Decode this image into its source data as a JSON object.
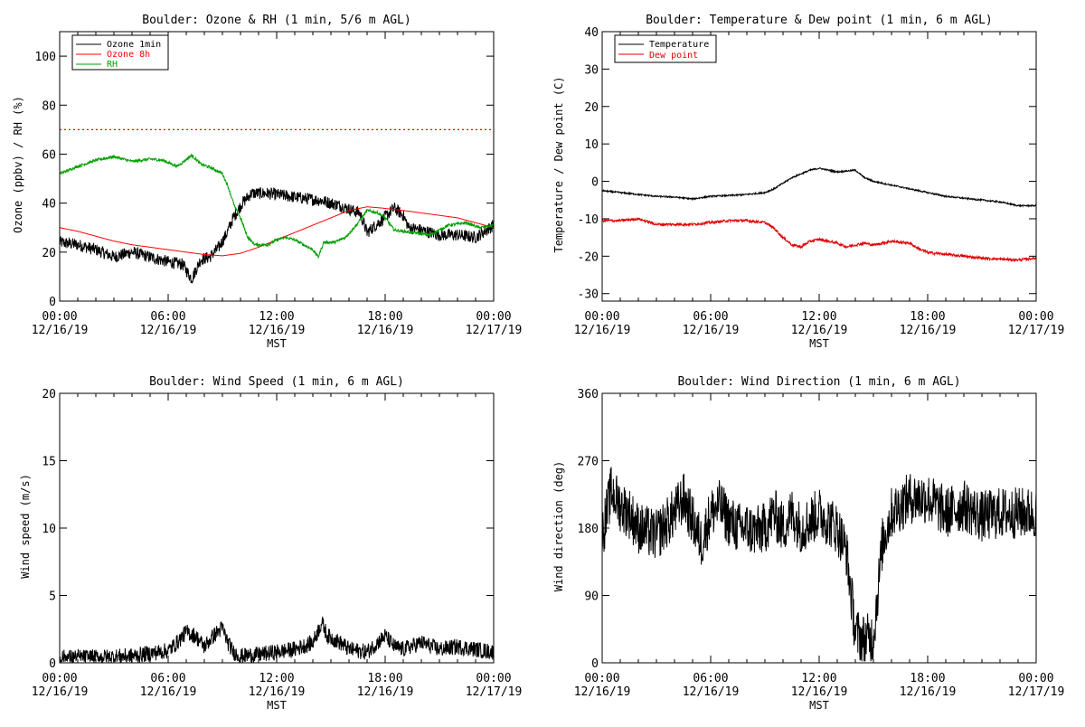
{
  "chart_data": [
    {
      "id": "ozone_rh",
      "type": "line",
      "title": "Boulder: Ozone & RH (1 min, 5/6 m AGL)",
      "xlabel": "MST",
      "ylabel": "Ozone (ppbv) / RH (%)",
      "x_range_hours": [
        0,
        24
      ],
      "x_ticks": [
        {
          "h": 0,
          "time": "00:00",
          "date": "12/16/19"
        },
        {
          "h": 6,
          "time": "06:00",
          "date": "12/16/19"
        },
        {
          "h": 12,
          "time": "12:00",
          "date": "12/16/19"
        },
        {
          "h": 18,
          "time": "18:00",
          "date": "12/16/19"
        },
        {
          "h": 24,
          "time": "00:00",
          "date": "12/17/19"
        }
      ],
      "ylim": [
        0,
        110
      ],
      "y_ticks": [
        0,
        20,
        40,
        60,
        80,
        100
      ],
      "legend": "top-left",
      "reference_line": {
        "y": 70,
        "color": "#ff0000",
        "style": "dotted"
      },
      "series": [
        {
          "name": "Ozone 1min",
          "color": "#000000",
          "noise": 2.5,
          "points": [
            [
              0,
              24
            ],
            [
              1,
              23
            ],
            [
              2,
              21
            ],
            [
              3,
              18
            ],
            [
              4,
              20
            ],
            [
              5,
              18
            ],
            [
              6,
              16
            ],
            [
              6.8,
              15
            ],
            [
              7.3,
              9
            ],
            [
              7.8,
              17
            ],
            [
              8.3,
              18
            ],
            [
              8.8,
              22
            ],
            [
              9.2,
              27
            ],
            [
              9.6,
              34
            ],
            [
              10.1,
              40
            ],
            [
              10.6,
              44
            ],
            [
              11.5,
              44
            ],
            [
              12.5,
              43
            ],
            [
              13.5,
              42
            ],
            [
              14.5,
              41
            ],
            [
              15.5,
              39
            ],
            [
              16.2,
              37
            ],
            [
              16.6,
              36
            ],
            [
              17,
              28
            ],
            [
              17.8,
              33
            ],
            [
              18.5,
              38
            ],
            [
              19,
              35
            ],
            [
              19.3,
              30
            ],
            [
              20,
              29
            ],
            [
              21,
              27
            ],
            [
              22,
              27
            ],
            [
              23,
              26
            ],
            [
              24,
              31
            ]
          ]
        },
        {
          "name": "Ozone 8h",
          "color": "#ff0000",
          "noise": 0,
          "points": [
            [
              0,
              30
            ],
            [
              1,
              28.5
            ],
            [
              2,
              26.5
            ],
            [
              3,
              24.5
            ],
            [
              4,
              23
            ],
            [
              5,
              22
            ],
            [
              6,
              21
            ],
            [
              7,
              20
            ],
            [
              8,
              19
            ],
            [
              9,
              18.5
            ],
            [
              10,
              19.5
            ],
            [
              11,
              22
            ],
            [
              12,
              25
            ],
            [
              13,
              28
            ],
            [
              14,
              31
            ],
            [
              15,
              34
            ],
            [
              16,
              37
            ],
            [
              17,
              38.5
            ],
            [
              17.8,
              38
            ],
            [
              19,
              37
            ],
            [
              20,
              36
            ],
            [
              21,
              35
            ],
            [
              22,
              34
            ],
            [
              23,
              32
            ],
            [
              24,
              30
            ]
          ]
        },
        {
          "name": "RH",
          "color": "#00a000",
          "noise": 0.6,
          "points": [
            [
              0,
              52
            ],
            [
              1,
              55
            ],
            [
              2,
              57.5
            ],
            [
              3,
              59
            ],
            [
              4,
              57
            ],
            [
              5,
              58
            ],
            [
              5.7,
              57.5
            ],
            [
              6.5,
              55
            ],
            [
              7.3,
              59.5
            ],
            [
              7.8,
              56
            ],
            [
              8.5,
              54
            ],
            [
              9,
              52
            ],
            [
              9.3,
              47
            ],
            [
              9.7,
              38
            ],
            [
              10,
              34
            ],
            [
              10.4,
              26
            ],
            [
              10.8,
              23
            ],
            [
              11.5,
              23
            ],
            [
              12,
              25
            ],
            [
              12.5,
              26
            ],
            [
              13,
              25
            ],
            [
              13.5,
              23
            ],
            [
              14,
              21
            ],
            [
              14.3,
              18
            ],
            [
              14.6,
              24
            ],
            [
              15.2,
              24
            ],
            [
              15.8,
              26
            ],
            [
              16.4,
              31
            ],
            [
              17,
              37
            ],
            [
              17.6,
              36
            ],
            [
              18,
              34
            ],
            [
              18.5,
              29
            ],
            [
              19.5,
              28
            ],
            [
              20.5,
              27
            ],
            [
              21.5,
              31
            ],
            [
              22.5,
              32
            ],
            [
              23.2,
              30
            ],
            [
              24,
              31
            ]
          ]
        }
      ]
    },
    {
      "id": "temp_dew",
      "type": "line",
      "title": "Boulder: Temperature & Dew point (1 min, 6 m AGL)",
      "xlabel": "MST",
      "ylabel": "Temperature / Dew point (C)",
      "x_range_hours": [
        0,
        24
      ],
      "x_ticks": [
        {
          "h": 0,
          "time": "00:00",
          "date": "12/16/19"
        },
        {
          "h": 6,
          "time": "06:00",
          "date": "12/16/19"
        },
        {
          "h": 12,
          "time": "12:00",
          "date": "12/16/19"
        },
        {
          "h": 18,
          "time": "18:00",
          "date": "12/16/19"
        },
        {
          "h": 24,
          "time": "00:00",
          "date": "12/17/19"
        }
      ],
      "ylim": [
        -32,
        40
      ],
      "y_ticks": [
        -30,
        -20,
        -10,
        0,
        10,
        20,
        30,
        40
      ],
      "legend": "top-left",
      "series": [
        {
          "name": "Temperature",
          "color": "#000000",
          "noise": 0.2,
          "points": [
            [
              0,
              -2.5
            ],
            [
              1,
              -3
            ],
            [
              2,
              -3.5
            ],
            [
              3,
              -4
            ],
            [
              4,
              -4.2
            ],
            [
              5,
              -4.7
            ],
            [
              6,
              -4
            ],
            [
              7,
              -3.8
            ],
            [
              8,
              -3.5
            ],
            [
              9,
              -3
            ],
            [
              9.5,
              -2
            ],
            [
              10,
              -0.5
            ],
            [
              10.5,
              1
            ],
            [
              11,
              2
            ],
            [
              11.5,
              3
            ],
            [
              12,
              3.5
            ],
            [
              12.5,
              3
            ],
            [
              13,
              2.5
            ],
            [
              14,
              3
            ],
            [
              14.5,
              1
            ],
            [
              15,
              0
            ],
            [
              16,
              -1
            ],
            [
              17,
              -2
            ],
            [
              18,
              -3
            ],
            [
              19,
              -4
            ],
            [
              20,
              -4.5
            ],
            [
              21,
              -5
            ],
            [
              22,
              -5.5
            ],
            [
              23,
              -6.5
            ],
            [
              24,
              -6.5
            ]
          ]
        },
        {
          "name": "Dew point",
          "color": "#e00000",
          "noise": 0.35,
          "points": [
            [
              0,
              -10.5
            ],
            [
              1,
              -10.5
            ],
            [
              2,
              -10
            ],
            [
              3,
              -11.5
            ],
            [
              4,
              -11.5
            ],
            [
              5,
              -11.5
            ],
            [
              6,
              -11
            ],
            [
              7,
              -10.5
            ],
            [
              8,
              -10.5
            ],
            [
              9,
              -11
            ],
            [
              9.5,
              -12.5
            ],
            [
              10,
              -15
            ],
            [
              10.5,
              -17
            ],
            [
              11,
              -17.5
            ],
            [
              11.5,
              -16
            ],
            [
              12,
              -15.5
            ],
            [
              13,
              -16.5
            ],
            [
              13.5,
              -17.5
            ],
            [
              14,
              -17
            ],
            [
              14.5,
              -16.5
            ],
            [
              15,
              -17
            ],
            [
              16,
              -16
            ],
            [
              17,
              -16.5
            ],
            [
              17.5,
              -18
            ],
            [
              18,
              -19
            ],
            [
              19,
              -19.5
            ],
            [
              20,
              -20
            ],
            [
              21,
              -20.5
            ],
            [
              22,
              -20.8
            ],
            [
              23,
              -21
            ],
            [
              24,
              -20.5
            ]
          ]
        }
      ]
    },
    {
      "id": "wind_speed",
      "type": "line",
      "title": "Boulder: Wind Speed (1 min, 6 m AGL)",
      "xlabel": "MST",
      "ylabel": "Wind speed (m/s)",
      "x_range_hours": [
        0,
        24
      ],
      "x_ticks": [
        {
          "h": 0,
          "time": "00:00",
          "date": "12/16/19"
        },
        {
          "h": 6,
          "time": "06:00",
          "date": "12/16/19"
        },
        {
          "h": 12,
          "time": "12:00",
          "date": "12/16/19"
        },
        {
          "h": 18,
          "time": "18:00",
          "date": "12/16/19"
        },
        {
          "h": 24,
          "time": "00:00",
          "date": "12/17/19"
        }
      ],
      "ylim": [
        0,
        20
      ],
      "y_ticks": [
        0,
        5,
        10,
        15,
        20
      ],
      "series": [
        {
          "name": "",
          "color": "#000000",
          "noise": 0.6,
          "points": [
            [
              0,
              0.4
            ],
            [
              2,
              0.4
            ],
            [
              4,
              0.5
            ],
            [
              5,
              0.7
            ],
            [
              6,
              0.9
            ],
            [
              6.5,
              1.5
            ],
            [
              7,
              2.3
            ],
            [
              7.5,
              2
            ],
            [
              8,
              1.2
            ],
            [
              8.5,
              2
            ],
            [
              9,
              2.6
            ],
            [
              9.3,
              1.5
            ],
            [
              9.6,
              0.8
            ],
            [
              10,
              0.5
            ],
            [
              11,
              0.6
            ],
            [
              12,
              0.8
            ],
            [
              13,
              1
            ],
            [
              14,
              1.5
            ],
            [
              14.5,
              3
            ],
            [
              14.8,
              2
            ],
            [
              15.5,
              1.5
            ],
            [
              16,
              1
            ],
            [
              17,
              0.8
            ],
            [
              18,
              2
            ],
            [
              18.5,
              1.2
            ],
            [
              19,
              1
            ],
            [
              20,
              1.5
            ],
            [
              21,
              1
            ],
            [
              22,
              1.2
            ],
            [
              23,
              1
            ],
            [
              24,
              0.8
            ]
          ]
        }
      ]
    },
    {
      "id": "wind_dir",
      "type": "line",
      "title": "Boulder: Wind Direction (1 min, 6 m AGL)",
      "xlabel": "MST",
      "ylabel": "Wind direction (deg)",
      "x_range_hours": [
        0,
        24
      ],
      "x_ticks": [
        {
          "h": 0,
          "time": "00:00",
          "date": "12/16/19"
        },
        {
          "h": 6,
          "time": "06:00",
          "date": "12/16/19"
        },
        {
          "h": 12,
          "time": "12:00",
          "date": "12/16/19"
        },
        {
          "h": 18,
          "time": "18:00",
          "date": "12/16/19"
        },
        {
          "h": 24,
          "time": "00:00",
          "date": "12/17/19"
        }
      ],
      "ylim": [
        0,
        360
      ],
      "y_ticks": [
        0,
        90,
        180,
        270,
        360
      ],
      "series": [
        {
          "name": "",
          "color": "#000000",
          "noise": 35,
          "points": [
            [
              0,
              170
            ],
            [
              0.5,
              230
            ],
            [
              1,
              210
            ],
            [
              1.5,
              200
            ],
            [
              2,
              180
            ],
            [
              3,
              170
            ],
            [
              4,
              200
            ],
            [
              4.5,
              220
            ],
            [
              5,
              190
            ],
            [
              5.5,
              160
            ],
            [
              6,
              200
            ],
            [
              6.5,
              210
            ],
            [
              7,
              190
            ],
            [
              7.5,
              180
            ],
            [
              8,
              180
            ],
            [
              8.5,
              175
            ],
            [
              9,
              180
            ],
            [
              9.5,
              200
            ],
            [
              10,
              180
            ],
            [
              10.5,
              200
            ],
            [
              11,
              180
            ],
            [
              12,
              200
            ],
            [
              13,
              180
            ],
            [
              13.5,
              150
            ],
            [
              14,
              40
            ],
            [
              14.5,
              30
            ],
            [
              15,
              35
            ],
            [
              15.5,
              160
            ],
            [
              16,
              200
            ],
            [
              17,
              220
            ],
            [
              18,
              220
            ],
            [
              19,
              200
            ],
            [
              20,
              210
            ],
            [
              21,
              195
            ],
            [
              22,
              200
            ],
            [
              23,
              200
            ],
            [
              24,
              200
            ]
          ]
        }
      ]
    }
  ]
}
